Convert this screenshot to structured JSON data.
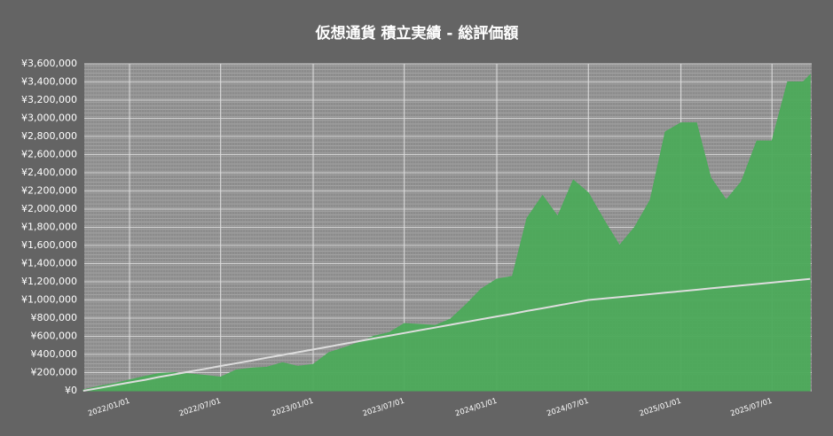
{
  "chart_data": {
    "type": "area",
    "title": "仮想通貨 積立実績 - 総評価額",
    "x": [
      "2021/10/01",
      "2021/11/01",
      "2021/12/01",
      "2022/01/01",
      "2022/02/01",
      "2022/03/01",
      "2022/04/01",
      "2022/05/01",
      "2022/06/01",
      "2022/07/01",
      "2022/08/01",
      "2022/09/01",
      "2022/10/01",
      "2022/11/01",
      "2022/12/01",
      "2023/01/01",
      "2023/02/01",
      "2023/03/01",
      "2023/04/01",
      "2023/05/01",
      "2023/06/01",
      "2023/07/01",
      "2023/08/01",
      "2023/09/01",
      "2023/10/01",
      "2023/11/01",
      "2023/12/01",
      "2024/01/01",
      "2024/02/01",
      "2024/03/01",
      "2024/04/01",
      "2024/05/01",
      "2024/06/01",
      "2024/07/01",
      "2024/08/01",
      "2024/09/01",
      "2024/10/01",
      "2024/11/01",
      "2024/12/01",
      "2025/01/01",
      "2025/02/01",
      "2025/03/01",
      "2025/04/01",
      "2025/05/01",
      "2025/06/01",
      "2025/07/01",
      "2025/08/01",
      "2025/09/01",
      "2025/09/15"
    ],
    "series": [
      {
        "type": "area",
        "color": "#4caa5a",
        "values": [
          10000,
          50000,
          80000,
          120000,
          160000,
          190000,
          200000,
          185000,
          170000,
          150000,
          230000,
          250000,
          260000,
          310000,
          270000,
          290000,
          420000,
          470000,
          530000,
          600000,
          640000,
          740000,
          730000,
          720000,
          790000,
          950000,
          1120000,
          1230000,
          1260000,
          1900000,
          2150000,
          1920000,
          2320000,
          2180000,
          1880000,
          1600000,
          1800000,
          2100000,
          2850000,
          2950000,
          2950000,
          2350000,
          2100000,
          2300000,
          2750000,
          2750000,
          3400000,
          3400000,
          3480000
        ]
      },
      {
        "type": "line",
        "color": "#dddddd",
        "values": [
          0,
          30000,
          61000,
          91000,
          121000,
          152000,
          182000,
          212000,
          242000,
          273000,
          303000,
          333000,
          364000,
          394000,
          424000,
          455000,
          485000,
          515000,
          545000,
          576000,
          606000,
          636000,
          667000,
          697000,
          727000,
          758000,
          788000,
          818000,
          848000,
          879000,
          909000,
          939000,
          970000,
          1000000,
          1016000,
          1032000,
          1048000,
          1064000,
          1080000,
          1096000,
          1112000,
          1128000,
          1144000,
          1160000,
          1176000,
          1192000,
          1208000,
          1224000,
          1232000
        ]
      }
    ],
    "xlim": [
      "2021/10/03",
      "2025/09/18"
    ],
    "xticks": [
      "2022/01/01",
      "2022/07/01",
      "2023/01/01",
      "2023/07/01",
      "2024/01/01",
      "2024/07/01",
      "2025/01/01",
      "2025/07/01"
    ],
    "ylim": [
      0,
      3600000
    ],
    "yticks": [
      {
        "value": 0,
        "label": "¥0"
      },
      {
        "value": 200000,
        "label": "¥200,000"
      },
      {
        "value": 400000,
        "label": "¥400,000"
      },
      {
        "value": 600000,
        "label": "¥600,000"
      },
      {
        "value": 800000,
        "label": "¥800,000"
      },
      {
        "value": 1000000,
        "label": "¥1,000,000"
      },
      {
        "value": 1200000,
        "label": "¥1,200,000"
      },
      {
        "value": 1400000,
        "label": "¥1,400,000"
      },
      {
        "value": 1600000,
        "label": "¥1,600,000"
      },
      {
        "value": 1800000,
        "label": "¥1,800,000"
      },
      {
        "value": 2000000,
        "label": "¥2,000,000"
      },
      {
        "value": 2200000,
        "label": "¥2,200,000"
      },
      {
        "value": 2400000,
        "label": "¥2,400,000"
      },
      {
        "value": 2600000,
        "label": "¥2,600,000"
      },
      {
        "value": 2800000,
        "label": "¥2,800,000"
      },
      {
        "value": 3000000,
        "label": "¥3,000,000"
      },
      {
        "value": 3200000,
        "label": "¥3,200,000"
      },
      {
        "value": 3400000,
        "label": "¥3,400,000"
      },
      {
        "value": 3600000,
        "label": "¥3,600,000"
      }
    ],
    "grid": true
  }
}
